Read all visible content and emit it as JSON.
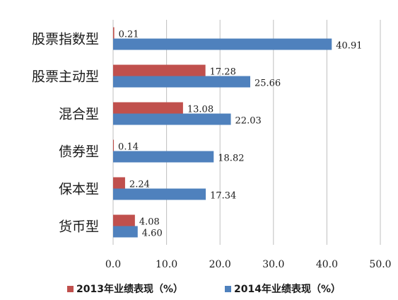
{
  "chart_data": {
    "type": "bar",
    "orientation": "horizontal",
    "categories": [
      "股票指数型",
      "股票主动型",
      "混合型",
      "债券型",
      "保本型",
      "货币型"
    ],
    "series": [
      {
        "name": "2013年业绩表现（%）",
        "color": "#c0504d",
        "values": [
          0.21,
          17.28,
          13.08,
          0.14,
          2.24,
          4.08
        ],
        "labels": [
          "0.21",
          "17.28",
          "13.08",
          "0.14",
          "2.24",
          "4.08"
        ]
      },
      {
        "name": "2014年业绩表现（%）",
        "color": "#4f81bd",
        "values": [
          40.91,
          25.66,
          22.03,
          18.82,
          17.34,
          4.6
        ],
        "labels": [
          "40.91",
          "25.66",
          "22.03",
          "18.82",
          "17.34",
          "4.60"
        ]
      }
    ],
    "xlim": [
      0,
      50
    ],
    "xticks": [
      "0.0",
      "10.0",
      "20.0",
      "30.0",
      "40.0",
      "50.0"
    ],
    "grid": true,
    "legend_position": "bottom"
  }
}
